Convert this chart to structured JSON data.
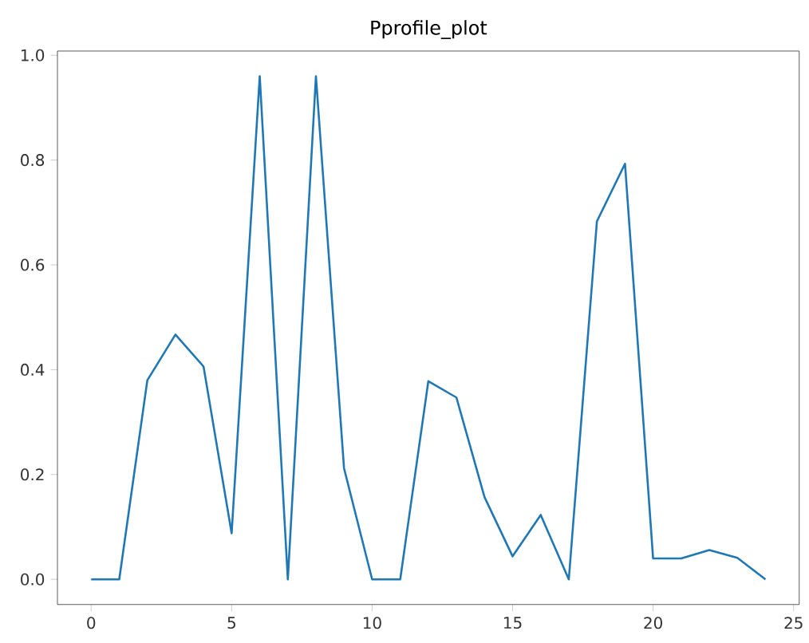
{
  "chart_data": {
    "type": "line",
    "title": "Pprofile_plot",
    "x": [
      0,
      1,
      2,
      3,
      4,
      5,
      6,
      7,
      8,
      9,
      10,
      11,
      12,
      13,
      14,
      15,
      16,
      17,
      18,
      19,
      20,
      21,
      22,
      23,
      24
    ],
    "series": [
      {
        "color": "#1f77b4",
        "values": [
          0,
          0,
          0.38,
          0.467,
          0.406,
          0.088,
          0.96,
          0,
          0.96,
          0.212,
          0,
          0,
          0.378,
          0.347,
          0.157,
          0.044,
          0.123,
          0,
          0.683,
          0.793,
          0.04,
          0.04,
          0.056,
          0.041,
          0
        ]
      }
    ],
    "xlim": [
      -1.2,
      25.2
    ],
    "xticks": [
      0,
      5,
      10,
      15,
      20,
      25
    ],
    "ylim": [
      -0.048,
      1.008
    ],
    "yticks": [
      {
        "value": 0,
        "label": "0.0"
      },
      {
        "value": 0.2,
        "label": "0.2"
      },
      {
        "value": 0.4,
        "label": "0.4"
      },
      {
        "value": 0.6,
        "label": "0.6"
      },
      {
        "value": 0.8,
        "label": "0.8"
      },
      {
        "value": 1.0,
        "label": "1.0"
      }
    ],
    "grid": false
  }
}
